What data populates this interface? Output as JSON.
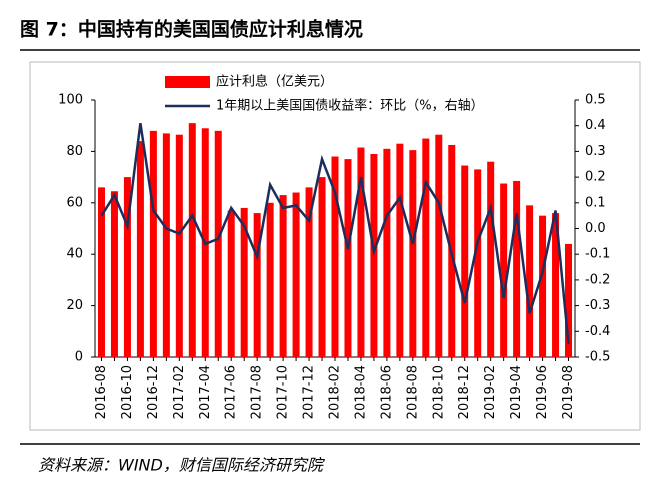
{
  "title": "图 7：中国持有的美国国债应计利息情况",
  "source": "资料来源：WIND，财信国际经济研究院",
  "chart_data": {
    "type": "bar-line",
    "categories": [
      "2016-08",
      null,
      "2016-10",
      null,
      "2016-12",
      null,
      "2017-02",
      null,
      "2017-04",
      null,
      "2017-06",
      null,
      "2017-08",
      null,
      "2017-10",
      null,
      "2017-12",
      null,
      "2018-02",
      null,
      "2018-04",
      null,
      "2018-06",
      null,
      "2018-08",
      null,
      "2018-10",
      null,
      "2018-12",
      null,
      "2019-02",
      null,
      "2019-04",
      null,
      "2019-06",
      null,
      "2019-08"
    ],
    "series": [
      {
        "name": "应计利息（亿美元）",
        "type": "bar",
        "color": "#ff0000",
        "values": [
          66,
          64.5,
          70,
          84,
          88,
          87,
          86.5,
          91,
          89,
          88,
          57,
          58,
          56,
          60,
          63,
          64,
          66,
          70,
          78,
          77,
          81.5,
          79,
          81,
          83,
          80.5,
          85,
          86.5,
          82.5,
          74.5,
          73,
          76,
          67.5,
          68.5,
          59,
          55,
          56,
          44
        ]
      },
      {
        "name": "1年期以上美国国债收益率：环比（%，右轴）",
        "type": "line",
        "axis": "y2",
        "color": "#1f2d5c",
        "values": [
          0.05,
          0.13,
          0.01,
          0.41,
          0.07,
          0.0,
          -0.02,
          0.05,
          -0.06,
          -0.04,
          0.08,
          0.01,
          -0.11,
          0.17,
          0.08,
          0.09,
          0.03,
          0.27,
          0.14,
          -0.08,
          0.2,
          -0.09,
          0.05,
          0.12,
          -0.06,
          0.18,
          0.1,
          -0.1,
          -0.29,
          -0.05,
          0.08,
          -0.27,
          0.06,
          -0.33,
          -0.17,
          0.07,
          -0.45
        ]
      }
    ],
    "ylim": [
      0,
      100
    ],
    "yticks": [
      0,
      20,
      40,
      60,
      80,
      100
    ],
    "y2lim": [
      -0.5,
      0.5
    ],
    "y2ticks": [
      -0.5,
      -0.4,
      -0.3,
      -0.2,
      -0.1,
      {
        "value": 0,
        "label": "0.0"
      },
      0.1,
      0.2,
      0.3,
      0.4,
      0.5
    ]
  }
}
